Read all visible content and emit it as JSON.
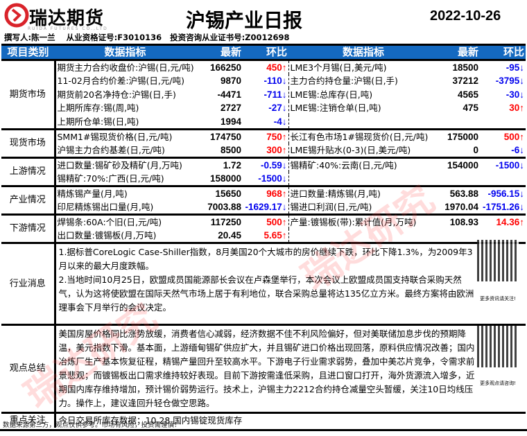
{
  "header": {
    "brand": "瑞达期货",
    "brand_en": "RUIDA FUTURES CO.,LTD",
    "title": "沪锡产业日报",
    "date": "2022-10-26",
    "author": "撰写人:陈一兰    从业资格证号:F3010136   投资咨询从业证书号:Z0012698"
  },
  "columns": {
    "category": "项目类别",
    "indicator": "数据指标",
    "latest": "最新",
    "change": "环比"
  },
  "colors": {
    "header_bg": "#1469c0",
    "up": "#ff0000",
    "down": "#0000ee"
  },
  "sections": [
    {
      "category": "期货市场",
      "left": [
        {
          "ind": "期货主力合约收盘价:沪锡(日,元/吨)",
          "val": "166250",
          "chg": "450↑",
          "dir": "up"
        },
        {
          "ind": "11-02月合约价差:沪锡(日,元/吨)",
          "val": "9870",
          "chg": "-110↓",
          "dir": "down"
        },
        {
          "ind": "期货前20名净持仓:沪锡(日,手)",
          "val": "-4471",
          "chg": "-711↓",
          "dir": "down"
        },
        {
          "ind": "上期所库存:锡(周,吨)",
          "val": "2727",
          "chg": "-27↓",
          "dir": "down"
        },
        {
          "ind": "上期所仓单:锡(日,吨)",
          "val": "1994",
          "chg": "-4↓",
          "dir": "down"
        }
      ],
      "right": [
        {
          "ind": "LME3个月锡(日,美元/吨)",
          "val": "18500",
          "chg": "-95↓",
          "dir": "down"
        },
        {
          "ind": "主力合约持仓量:沪锡(日,手)",
          "val": "37212",
          "chg": "-3795↓",
          "dir": "down"
        },
        {
          "ind": "LME锡:总库存(日,吨)",
          "val": "4565",
          "chg": "-30↓",
          "dir": "down"
        },
        {
          "ind": "LME锡:注销仓单(日,吨)",
          "val": "475",
          "chg": "30↑",
          "dir": "up"
        }
      ]
    },
    {
      "category": "现货市场",
      "left": [
        {
          "ind": "SMM1#锡现货价格(日,元/吨)",
          "val": "174750",
          "chg": "750↑",
          "dir": "up"
        },
        {
          "ind": "沪锡主力合约基差(日,元/吨)",
          "val": "8500",
          "chg": "300↑",
          "dir": "up"
        }
      ],
      "right": [
        {
          "ind": "长江有色市场1#锡现货价(日,元/吨)",
          "val": "175000",
          "chg": "500↑",
          "dir": "up"
        },
        {
          "ind": "LME锡升贴水(0-3)(日,美元/吨)",
          "val": "0",
          "chg": "-6↓",
          "dir": "down"
        }
      ]
    },
    {
      "category": "上游情况",
      "left": [
        {
          "ind": "进口数量:锡矿砂及精矿(月,万吨)",
          "val": "1.72",
          "chg": "-0.59↓",
          "dir": "down"
        },
        {
          "ind": "锡精矿:70%:广西(日,元/吨)",
          "val": "158000",
          "chg": "-1500↓",
          "dir": "down"
        }
      ],
      "right": [
        {
          "ind": "锡精矿:40%:云南(日,元/吨)",
          "val": "154000",
          "chg": "-1500↓",
          "dir": "down"
        }
      ]
    },
    {
      "category": "产业情况",
      "left": [
        {
          "ind": "精炼锡产量(月,吨)",
          "val": "15650",
          "chg": "968↑",
          "dir": "up"
        },
        {
          "ind": "印尼精炼锡出口量(月,吨)",
          "val": "7003.88",
          "chg": "-1629.17↓",
          "dir": "down"
        }
      ],
      "right": [
        {
          "ind": "进口数量:精炼锡(月,吨)",
          "val": "563.88",
          "chg": "-956.15↓",
          "dir": "down"
        },
        {
          "ind": "锡进口利润(日,元/吨)",
          "val": "1970.04",
          "chg": "-1751.26↓",
          "dir": "down"
        }
      ]
    },
    {
      "category": "下游情况",
      "left": [
        {
          "ind": "焊锡条:60A:个旧(日,元/吨)",
          "val": "117250",
          "chg": "500↑",
          "dir": "up"
        },
        {
          "ind": "出口数量:镀锡板(月,万吨)",
          "val": "20.45",
          "chg": "5.65↑",
          "dir": "up"
        }
      ],
      "right": [
        {
          "ind": "产量:镀锡板(带):累计值(月,万吨)",
          "val": "108.93",
          "chg": "14.36↑",
          "dir": "up"
        }
      ]
    }
  ],
  "news": {
    "category": "行业消息",
    "text": "1.据标普CoreLogic Case-Shiller指数，8月美国20个大城市的房价继续下跌，环比下降1.3%，为2009年3月以来的最大月度跌幅。\n2.当地时间10月25日，欧盟成员国能源部长会议在卢森堡举行，本次会议上欧盟成员国支持联合采购天然气，认为这将使欧盟在国际天然气市场上居于有利地位，联合采购总量将达135亿立方米。最终方案将由欧洲理事会下月举行的会议决定。",
    "qr_caption": "更多资讯请关注!"
  },
  "view": {
    "category": "观点总结",
    "text": "美国房屋价格同比涨势放缓，消费者信心减弱，经济数据不佳不利风险偏好，但对美联储加息步伐的预期降温，美元指数下滑。基本面，上游缅甸锡矿供应扩大，并且锡矿进口价格出现回落，原料供应情况改善；国内冶炼厂生产基本恢复征程，精锡产量回升至较高水平。下游电子行业需求弱势，叠加中美芯片竞争，令需求前景悲观；而镀锡板出口需求维持较好表现。目前下游按需逢低采购，且进口窗口打开，海外货源流入增多，近期国内库存维持增加，预计锡价弱势运行。技术上，沪锡主力2212合约持仓减量空头暂缓，关注10日均线压力。操作上，建议逢回升轻仓做空思路。",
    "qr_caption": "更多观点请咨询!"
  },
  "focus": {
    "category": "重点关注",
    "text": "今日交易所库存数据；10.28 国内锡锭现货库存"
  },
  "footer": "数据来源第三方，观点仅供参考。市场有风险，投资需谨慎！",
  "watermark": "瑞达研究"
}
